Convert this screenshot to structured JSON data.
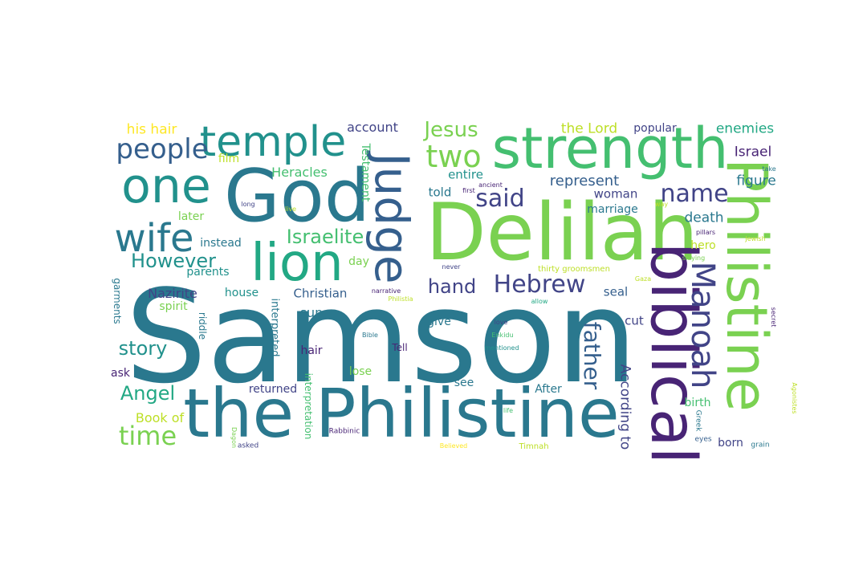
{
  "word_cloud": {
    "colors": {
      "dark_purple": "#482475",
      "purple": "#414487",
      "blue": "#355f8d",
      "teal_blue": "#2a788e",
      "teal": "#21918c",
      "teal_green": "#22a884",
      "green": "#44bf70",
      "light_green": "#7ad151",
      "yellow_green": "#bddf26",
      "yellow": "#fde725"
    },
    "words": [
      {
        "text": "Samson",
        "color": "#2a788e",
        "rotate": false
      },
      {
        "text": "Delilah",
        "color": "#7ad151",
        "rotate": false
      },
      {
        "text": "the Philistine",
        "color": "#2a788e",
        "rotate": false
      },
      {
        "text": "God",
        "color": "#2a788e",
        "rotate": false
      },
      {
        "text": "strength",
        "color": "#44bf70",
        "rotate": false
      },
      {
        "text": "biblical",
        "color": "#482475",
        "rotate": true
      },
      {
        "text": "Philistine",
        "color": "#7ad151",
        "rotate": true
      },
      {
        "text": "Judge",
        "color": "#355f8d",
        "rotate": true
      },
      {
        "text": "lion",
        "color": "#22a884",
        "rotate": false
      },
      {
        "text": "one",
        "color": "#21918c",
        "rotate": false
      },
      {
        "text": "temple",
        "color": "#21918c",
        "rotate": false
      },
      {
        "text": "wife",
        "color": "#2a788e",
        "rotate": false
      },
      {
        "text": "people",
        "color": "#355f8d",
        "rotate": false
      },
      {
        "text": "Manoah",
        "color": "#414487",
        "rotate": true
      },
      {
        "text": "two",
        "color": "#7ad151",
        "rotate": false
      },
      {
        "text": "name",
        "color": "#414487",
        "rotate": false
      },
      {
        "text": "Hebrew",
        "color": "#414487",
        "rotate": false
      },
      {
        "text": "said",
        "color": "#414487",
        "rotate": false
      },
      {
        "text": "time",
        "color": "#7ad151",
        "rotate": false
      },
      {
        "text": "Jesus",
        "color": "#7ad151",
        "rotate": false
      },
      {
        "text": "father",
        "color": "#355f8d",
        "rotate": true
      },
      {
        "text": "Israelite",
        "color": "#44bf70",
        "rotate": false
      },
      {
        "text": "However",
        "color": "#21918c",
        "rotate": false
      },
      {
        "text": "hand",
        "color": "#414487",
        "rotate": false
      },
      {
        "text": "story",
        "color": "#21918c",
        "rotate": false
      },
      {
        "text": "Angel",
        "color": "#22a884",
        "rotate": false
      },
      {
        "text": "represent",
        "color": "#355f8d",
        "rotate": false
      },
      {
        "text": "According to",
        "color": "#414487",
        "rotate": true
      },
      {
        "text": "death",
        "color": "#2a788e",
        "rotate": false
      },
      {
        "text": "his hair",
        "color": "#fde725",
        "rotate": false
      },
      {
        "text": "the Lord",
        "color": "#bddf26",
        "rotate": false
      },
      {
        "text": "enemies",
        "color": "#22a884",
        "rotate": false
      },
      {
        "text": "popular",
        "color": "#414487",
        "rotate": false
      },
      {
        "text": "account",
        "color": "#414487",
        "rotate": false
      },
      {
        "text": "Israel",
        "color": "#482475",
        "rotate": false
      },
      {
        "text": "Heracles",
        "color": "#44bf70",
        "rotate": false
      },
      {
        "text": "entire",
        "color": "#21918c",
        "rotate": false
      },
      {
        "text": "figure",
        "color": "#2a788e",
        "rotate": false
      },
      {
        "text": "woman",
        "color": "#414487",
        "rotate": false
      },
      {
        "text": "told",
        "color": "#2a788e",
        "rotate": false
      },
      {
        "text": "marriage",
        "color": "#2a788e",
        "rotate": false
      },
      {
        "text": "Testament",
        "color": "#44bf70",
        "rotate": true
      },
      {
        "text": "film",
        "color": "#bddf26",
        "rotate": false
      },
      {
        "text": "later",
        "color": "#7ad151",
        "rotate": false
      },
      {
        "text": "instead",
        "color": "#2a788e",
        "rotate": false
      },
      {
        "text": "parents",
        "color": "#21918c",
        "rotate": false
      },
      {
        "text": "hero",
        "color": "#bddf26",
        "rotate": false
      },
      {
        "text": "day",
        "color": "#7ad151",
        "rotate": false
      },
      {
        "text": "Nazirite",
        "color": "#414487",
        "rotate": false
      },
      {
        "text": "house",
        "color": "#21918c",
        "rotate": false
      },
      {
        "text": "Christian",
        "color": "#355f8d",
        "rotate": false
      },
      {
        "text": "seal",
        "color": "#355f8d",
        "rotate": false
      },
      {
        "text": "garments",
        "color": "#2a788e",
        "rotate": true
      },
      {
        "text": "spirit",
        "color": "#7ad151",
        "rotate": false
      },
      {
        "text": "riddle",
        "color": "#2a788e",
        "rotate": true
      },
      {
        "text": "interpreted",
        "color": "#2a788e",
        "rotate": true
      },
      {
        "text": "sun",
        "color": "#2a788e",
        "rotate": false
      },
      {
        "text": "give",
        "color": "#2a788e",
        "rotate": false
      },
      {
        "text": "cut",
        "color": "#414487",
        "rotate": false
      },
      {
        "text": "hair",
        "color": "#482475",
        "rotate": false
      },
      {
        "text": "Tell",
        "color": "#482475",
        "rotate": false
      },
      {
        "text": "ask",
        "color": "#482475",
        "rotate": false
      },
      {
        "text": "lose",
        "color": "#7ad151",
        "rotate": false
      },
      {
        "text": "interpretation",
        "color": "#44bf70",
        "rotate": true
      },
      {
        "text": "returned",
        "color": "#414487",
        "rotate": false
      },
      {
        "text": "see",
        "color": "#2a788e",
        "rotate": false
      },
      {
        "text": "After",
        "color": "#2a788e",
        "rotate": false
      },
      {
        "text": "birth",
        "color": "#44bf70",
        "rotate": false
      },
      {
        "text": "Book of",
        "color": "#bddf26",
        "rotate": false
      },
      {
        "text": "born",
        "color": "#414487",
        "rotate": false
      },
      {
        "text": "thirty groomsmen",
        "color": "#bddf26",
        "rotate": false
      },
      {
        "text": "narrative",
        "color": "#482475",
        "rotate": false
      },
      {
        "text": "Philistia",
        "color": "#bddf26",
        "rotate": false
      },
      {
        "text": "never",
        "color": "#414487",
        "rotate": false
      },
      {
        "text": "first",
        "color": "#482475",
        "rotate": false
      },
      {
        "text": "ancient",
        "color": "#482475",
        "rotate": false
      },
      {
        "text": "long",
        "color": "#414487",
        "rotate": false
      },
      {
        "text": "live",
        "color": "#bddf26",
        "rotate": false
      },
      {
        "text": "way",
        "color": "#bddf26",
        "rotate": false
      },
      {
        "text": "take",
        "color": "#2a788e",
        "rotate": false
      },
      {
        "text": "pillars",
        "color": "#482475",
        "rotate": false
      },
      {
        "text": "Jewish",
        "color": "#bddf26",
        "rotate": false
      },
      {
        "text": "slaying",
        "color": "#7ad151",
        "rotate": false
      },
      {
        "text": "Gaza",
        "color": "#bddf26",
        "rotate": false
      },
      {
        "text": "allow",
        "color": "#22a884",
        "rotate": false
      },
      {
        "text": "love",
        "color": "#414487",
        "rotate": false
      },
      {
        "text": "Enkidu",
        "color": "#44bf70",
        "rotate": false
      },
      {
        "text": "mentioned",
        "color": "#21918c",
        "rotate": false
      },
      {
        "text": "Bible",
        "color": "#2a788e",
        "rotate": false
      },
      {
        "text": "secret",
        "color": "#482475",
        "rotate": true
      },
      {
        "text": "Agonistes",
        "color": "#bddf26",
        "rotate": true
      },
      {
        "text": "life",
        "color": "#44bf70",
        "rotate": false
      },
      {
        "text": "Greek",
        "color": "#2a788e",
        "rotate": true
      },
      {
        "text": "eyes",
        "color": "#355f8d",
        "rotate": false
      },
      {
        "text": "grain",
        "color": "#2a788e",
        "rotate": false
      },
      {
        "text": "Timnah",
        "color": "#bddf26",
        "rotate": false
      },
      {
        "text": "Believed",
        "color": "#fde725",
        "rotate": false
      },
      {
        "text": "Rabbinic",
        "color": "#482475",
        "rotate": false
      },
      {
        "text": "asked",
        "color": "#414487",
        "rotate": false
      },
      {
        "text": "Dagon",
        "color": "#7ad151",
        "rotate": true
      }
    ]
  }
}
